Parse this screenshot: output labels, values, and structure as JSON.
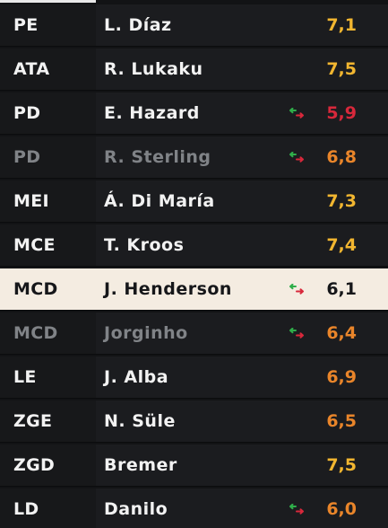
{
  "players": [
    {
      "pos": "PE",
      "name": "L. Díaz",
      "rating": "7,1",
      "rating_color": "#f2b630",
      "swap": false,
      "dim": false,
      "selected": false
    },
    {
      "pos": "ATA",
      "name": "R. Lukaku",
      "rating": "7,5",
      "rating_color": "#f2b630",
      "swap": false,
      "dim": false,
      "selected": false
    },
    {
      "pos": "PD",
      "name": "E. Hazard",
      "rating": "5,9",
      "rating_color": "#d8283b",
      "swap": true,
      "dim": false,
      "selected": false
    },
    {
      "pos": "PD",
      "name": "R. Sterling",
      "rating": "6,8",
      "rating_color": "#e9852a",
      "swap": true,
      "dim": true,
      "selected": false
    },
    {
      "pos": "MEI",
      "name": "Á. Di María",
      "rating": "7,3",
      "rating_color": "#f2b630",
      "swap": false,
      "dim": false,
      "selected": false
    },
    {
      "pos": "MCE",
      "name": "T. Kroos",
      "rating": "7,4",
      "rating_color": "#f2b630",
      "swap": false,
      "dim": false,
      "selected": false
    },
    {
      "pos": "MCD",
      "name": "J. Henderson",
      "rating": "6,1",
      "rating_color": "#16171a",
      "swap": true,
      "dim": false,
      "selected": true
    },
    {
      "pos": "MCD",
      "name": "Jorginho",
      "rating": "6,4",
      "rating_color": "#e9852a",
      "swap": true,
      "dim": true,
      "selected": false
    },
    {
      "pos": "LE",
      "name": "J. Alba",
      "rating": "6,9",
      "rating_color": "#e9852a",
      "swap": false,
      "dim": false,
      "selected": false
    },
    {
      "pos": "ZGE",
      "name": "N. Süle",
      "rating": "6,5",
      "rating_color": "#e9852a",
      "swap": false,
      "dim": false,
      "selected": false
    },
    {
      "pos": "ZGD",
      "name": "Bremer",
      "rating": "7,5",
      "rating_color": "#f2b630",
      "swap": false,
      "dim": false,
      "selected": false
    },
    {
      "pos": "LD",
      "name": "Danilo",
      "rating": "6,0",
      "rating_color": "#e9852a",
      "swap": true,
      "dim": false,
      "selected": false
    }
  ],
  "swap_icon": "substitution-swap-icon",
  "swap_colors": {
    "in": "#2fae4a",
    "out": "#d8283b"
  }
}
